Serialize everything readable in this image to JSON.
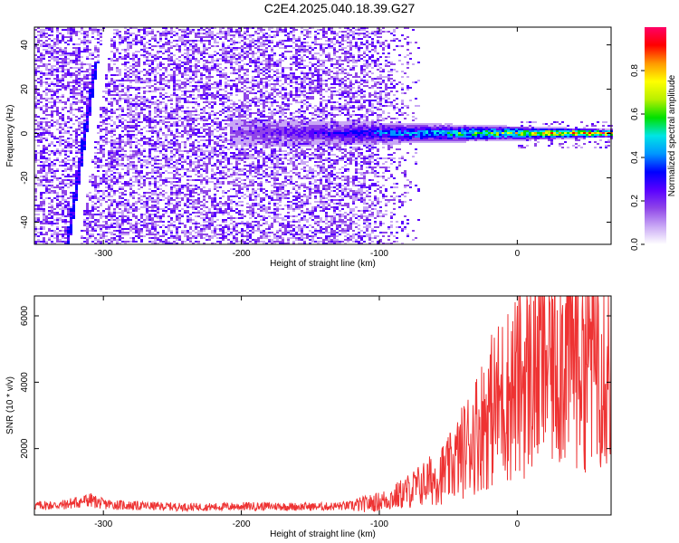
{
  "title": "C2E4.2025.040.18.39.G27",
  "chart_data": [
    {
      "type": "heatmap",
      "title": "C2E4.2025.040.18.39.G27",
      "xlabel": "Height of straight line (km)",
      "ylabel": "Frequency (Hz)",
      "xlim": [
        -350,
        68
      ],
      "ylim": [
        -50,
        48
      ],
      "xticks": [
        -300,
        -200,
        -100,
        0
      ],
      "xtick_labels": [
        "-300",
        "-200",
        "-100",
        "0"
      ],
      "yticks": [
        -40,
        -20,
        0,
        20,
        40
      ],
      "ytick_labels": [
        "-40",
        "-20",
        "0",
        "20",
        "40"
      ],
      "colorbar": {
        "label": "Normalized spectral amplitude",
        "range": [
          0.0,
          1.0
        ],
        "ticks": [
          0.0,
          0.2,
          0.4,
          0.6,
          0.8
        ],
        "tick_labels": [
          "0.0",
          "0.2",
          "0.4",
          "0.6",
          "0.8"
        ],
        "colormap": [
          "#ffffff",
          "#c9a8f5",
          "#8f45e8",
          "#5a00ff",
          "#0000ff",
          "#0096ff",
          "#00e5e5",
          "#00e000",
          "#b8f000",
          "#ffff00",
          "#ff9900",
          "#ff0000",
          "#ff0066"
        ]
      },
      "features": {
        "straight_line": {
          "x": [
            -327,
            -306
          ],
          "y": [
            -50,
            33
          ],
          "amplitude": 0.25
        },
        "signal_track": {
          "x": [
            -210,
            68
          ],
          "y": 0.5,
          "amplitude_start": 0.15,
          "amplitude_end": 0.9
        }
      }
    },
    {
      "type": "line",
      "xlabel": "Height of straight line (km)",
      "ylabel": "SNR (10 * v/v)",
      "xlim": [
        -350,
        68
      ],
      "ylim": [
        0,
        6600
      ],
      "xticks": [
        -300,
        -200,
        -100,
        0
      ],
      "xtick_labels": [
        "-300",
        "-200",
        "-100",
        "0"
      ],
      "yticks": [
        2000,
        4000,
        6000
      ],
      "ytick_labels": [
        "2000",
        "4000",
        "6000"
      ],
      "color": "#ee3333",
      "series": [
        {
          "name": "SNR",
          "x": [
            -350,
            -330,
            -310,
            -300,
            -280,
            -260,
            -240,
            -220,
            -200,
            -180,
            -160,
            -140,
            -120,
            -110,
            -100,
            -90,
            -80,
            -70,
            -60,
            -50,
            -40,
            -30,
            -20,
            -10,
            0,
            10,
            20,
            30,
            40,
            50,
            60,
            68
          ],
          "y": [
            280,
            300,
            450,
            330,
            280,
            260,
            240,
            240,
            260,
            260,
            250,
            250,
            280,
            330,
            400,
            520,
            700,
            900,
            1100,
            1350,
            1900,
            2500,
            3100,
            3550,
            3900,
            4300,
            4700,
            5000,
            5100,
            5100,
            5300,
            4300
          ]
        }
      ]
    }
  ]
}
